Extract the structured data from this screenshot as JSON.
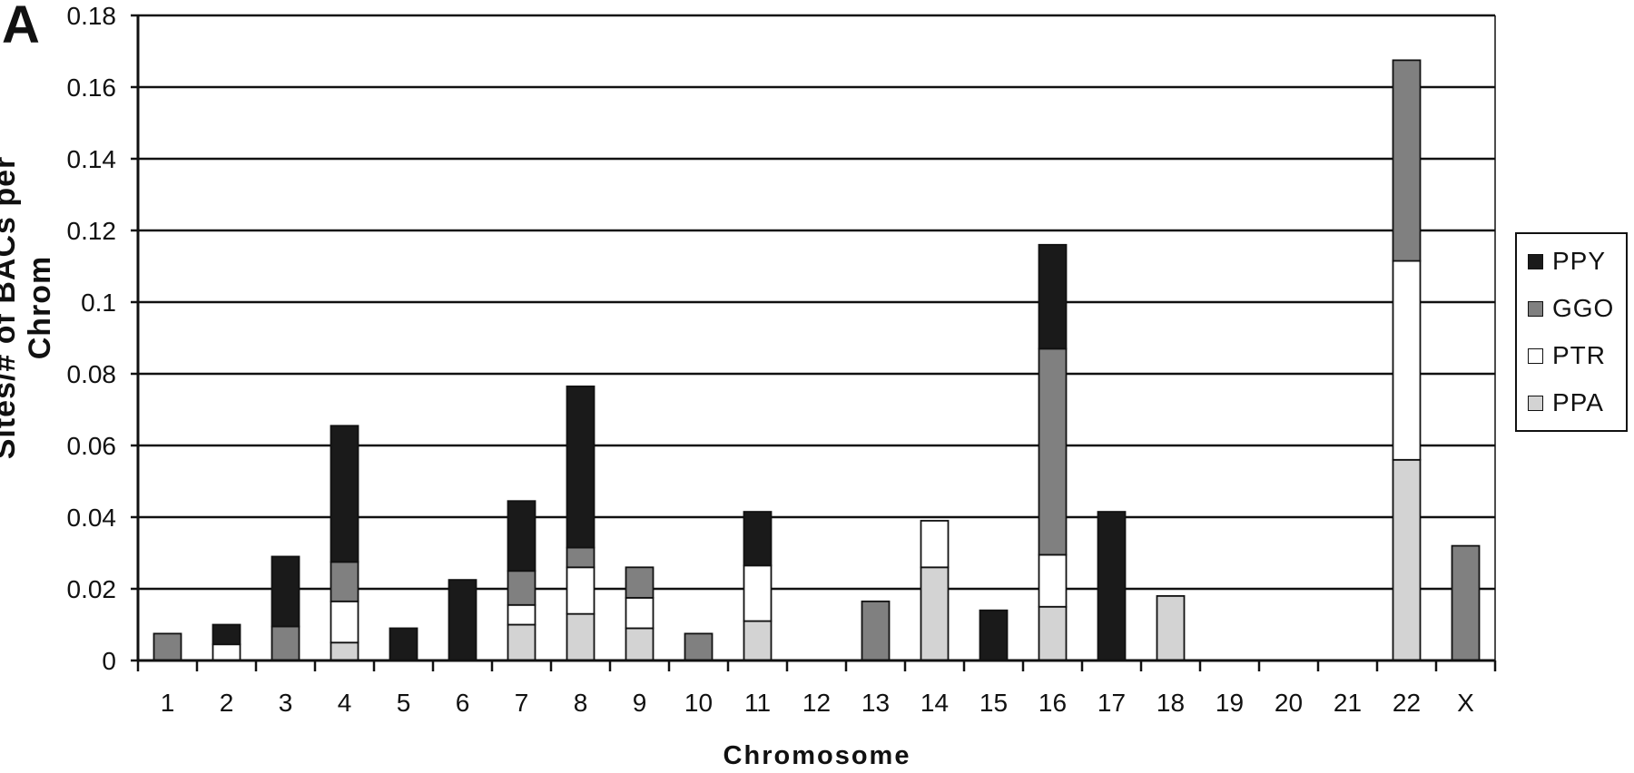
{
  "panel_label": "A",
  "chart_data": {
    "type": "bar",
    "stacked": true,
    "xlabel": "Chromosome",
    "ylabel": "Sites/# of BACs per Chrom",
    "ylim": [
      0,
      0.18
    ],
    "yticks": [
      "0",
      "0.02",
      "0.04",
      "0.06",
      "0.08",
      "0.1",
      "0.12",
      "0.14",
      "0.16",
      "0.18"
    ],
    "grid": true,
    "legend_position": "right",
    "categories": [
      "1",
      "2",
      "3",
      "4",
      "5",
      "6",
      "7",
      "8",
      "9",
      "10",
      "11",
      "12",
      "13",
      "14",
      "15",
      "16",
      "17",
      "18",
      "19",
      "20",
      "21",
      "22",
      "X"
    ],
    "series": [
      {
        "name": "PPA",
        "color": "#d3d3d3",
        "values": [
          0,
          0,
          0,
          0.005,
          0,
          0,
          0.01,
          0.013,
          0.009,
          0,
          0.011,
          0,
          0,
          0.026,
          0,
          0.015,
          0,
          0.018,
          0,
          0,
          0,
          0.056,
          0
        ]
      },
      {
        "name": "PTR",
        "color": "#ffffff",
        "values": [
          0,
          0.0045,
          0,
          0.0115,
          0,
          0,
          0.0055,
          0.013,
          0.0085,
          0,
          0.0155,
          0,
          0,
          0.013,
          0,
          0.0145,
          0,
          0,
          0,
          0,
          0,
          0.0555,
          0
        ]
      },
      {
        "name": "GGO",
        "color": "#808080",
        "values": [
          0.0075,
          0,
          0.0095,
          0.011,
          0,
          0,
          0.0095,
          0.0055,
          0.0085,
          0.0075,
          0,
          0,
          0.0165,
          0,
          0,
          0.0575,
          0,
          0,
          0,
          0,
          0,
          0.056,
          0.032
        ]
      },
      {
        "name": "PPY",
        "color": "#1a1a1a",
        "values": [
          0,
          0.0055,
          0.0195,
          0.038,
          0.009,
          0.0225,
          0.0195,
          0.045,
          0,
          0,
          0.015,
          0,
          0,
          0,
          0.014,
          0.029,
          0.0415,
          0,
          0,
          0,
          0,
          0,
          0
        ]
      }
    ]
  }
}
